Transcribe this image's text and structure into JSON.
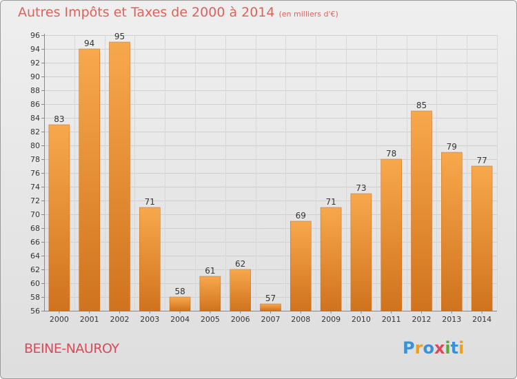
{
  "header": {
    "title": "Autres Impôts et Taxes de 2000 à 2014",
    "unit": "(en milliers d'€)"
  },
  "footer": {
    "commune": "BEINE-NAUROY",
    "logo": "Proxiti"
  },
  "colors": {
    "title": "#e0605a",
    "bar_light": "#f8a84c",
    "bar_dark": "#d0731e",
    "commune": "#d9495a"
  },
  "chart_data": {
    "type": "bar",
    "title": "Autres Impôts et Taxes de 2000 à 2014",
    "subtitle": "(en milliers d'€)",
    "xlabel": "",
    "ylabel": "",
    "categories": [
      "2000",
      "2001",
      "2002",
      "2003",
      "2004",
      "2005",
      "2006",
      "2007",
      "2008",
      "2009",
      "2010",
      "2011",
      "2012",
      "2013",
      "2014"
    ],
    "values": [
      83,
      94,
      95,
      71,
      58,
      61,
      62,
      57,
      69,
      71,
      73,
      78,
      85,
      79,
      77
    ],
    "ylim": [
      56,
      96
    ],
    "yticks": [
      56,
      58,
      60,
      62,
      64,
      66,
      68,
      70,
      72,
      74,
      76,
      78,
      80,
      82,
      84,
      86,
      88,
      90,
      92,
      94,
      96
    ],
    "grid": true,
    "data_labels": true
  }
}
